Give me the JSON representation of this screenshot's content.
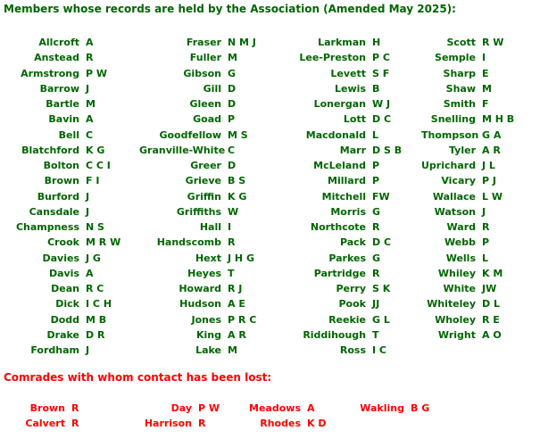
{
  "title": "Members whose records are held by the Association (Amended May 2025):",
  "colors": {
    "members_green": "#006600",
    "lost_red": "#ff0000"
  },
  "members": {
    "columns": [
      [
        {
          "surname": "Allcroft",
          "initials": "A"
        },
        {
          "surname": "Anstead",
          "initials": "R"
        },
        {
          "surname": "Armstrong",
          "initials": "P W"
        },
        {
          "surname": "Barrow",
          "initials": "J"
        },
        {
          "surname": "Bartle",
          "initials": "M"
        },
        {
          "surname": "Bavin",
          "initials": "A"
        },
        {
          "surname": "Bell",
          "initials": "C"
        },
        {
          "surname": "Blatchford",
          "initials": "K G"
        },
        {
          "surname": "Bolton",
          "initials": "C C I"
        },
        {
          "surname": "Brown",
          "initials": "F I"
        },
        {
          "surname": "Burford",
          "initials": "J"
        },
        {
          "surname": "Cansdale",
          "initials": "J"
        },
        {
          "surname": "Champness",
          "initials": "N S"
        },
        {
          "surname": "Crook",
          "initials": "M R W"
        },
        {
          "surname": "Davies",
          "initials": "J G"
        },
        {
          "surname": "Davis",
          "initials": "A"
        },
        {
          "surname": "Dean",
          "initials": "R C"
        },
        {
          "surname": "Dick",
          "initials": "I C H"
        },
        {
          "surname": "Dodd",
          "initials": "M B"
        },
        {
          "surname": "Drake",
          "initials": "D R"
        },
        {
          "surname": "Fordham",
          "initials": "J"
        }
      ],
      [
        {
          "surname": "Fraser",
          "initials": "N M J"
        },
        {
          "surname": "Fuller",
          "initials": "M"
        },
        {
          "surname": "Gibson",
          "initials": "G"
        },
        {
          "surname": "Gill",
          "initials": "D"
        },
        {
          "surname": "Gleen",
          "initials": "D"
        },
        {
          "surname": "Goad",
          "initials": "P"
        },
        {
          "surname": "Goodfellow",
          "initials": "M S"
        },
        {
          "surname": "Granville-White",
          "initials": "C"
        },
        {
          "surname": "Greer",
          "initials": "D"
        },
        {
          "surname": "Grieve",
          "initials": "B S"
        },
        {
          "surname": "Griffin",
          "initials": "K G"
        },
        {
          "surname": "Griffiths",
          "initials": "W"
        },
        {
          "surname": "Hall",
          "initials": "I"
        },
        {
          "surname": "Handscomb",
          "initials": "R"
        },
        {
          "surname": "Hext",
          "initials": "J H G"
        },
        {
          "surname": "Heyes",
          "initials": "T"
        },
        {
          "surname": "Howard",
          "initials": "R J"
        },
        {
          "surname": "Hudson",
          "initials": "A E"
        },
        {
          "surname": "Jones",
          "initials": "P R C"
        },
        {
          "surname": "King",
          "initials": "A R"
        },
        {
          "surname": "Lake",
          "initials": "M"
        }
      ],
      [
        {
          "surname": "Larkman",
          "initials": "H"
        },
        {
          "surname": "Lee-Preston",
          "initials": "P C"
        },
        {
          "surname": "Levett",
          "initials": "S F"
        },
        {
          "surname": "Lewis",
          "initials": "B"
        },
        {
          "surname": "Lonergan",
          "initials": "W J"
        },
        {
          "surname": "Lott",
          "initials": "D C"
        },
        {
          "surname": "Macdonald",
          "initials": "L"
        },
        {
          "surname": "Marr",
          "initials": "D S B"
        },
        {
          "surname": "McLeland",
          "initials": "P"
        },
        {
          "surname": "Millard",
          "initials": "P"
        },
        {
          "surname": "Mitchell",
          "initials": "FW"
        },
        {
          "surname": "Morris",
          "initials": "G"
        },
        {
          "surname": "Northcote",
          "initials": "R"
        },
        {
          "surname": "Pack",
          "initials": "D C"
        },
        {
          "surname": "Parkes",
          "initials": "G"
        },
        {
          "surname": "Partridge",
          "initials": "R"
        },
        {
          "surname": "Perry",
          "initials": "S K"
        },
        {
          "surname": "Pook",
          "initials": "JJ"
        },
        {
          "surname": "Reekie",
          "initials": "G L"
        },
        {
          "surname": "Riddihough",
          "initials": "T"
        },
        {
          "surname": "Ross",
          "initials": "I C"
        }
      ],
      [
        {
          "surname": "Scott",
          "initials": "R W"
        },
        {
          "surname": "Semple",
          "initials": "I"
        },
        {
          "surname": "Sharp",
          "initials": "E"
        },
        {
          "surname": "Shaw",
          "initials": "M"
        },
        {
          "surname": "Smith",
          "initials": "F"
        },
        {
          "surname": "Snelling",
          "initials": "M H B"
        },
        {
          "surname": "Thompson",
          "initials": "G A"
        },
        {
          "surname": "Tyler",
          "initials": "A R"
        },
        {
          "surname": "Uprichard",
          "initials": "J L"
        },
        {
          "surname": "Vicary",
          "initials": "P J"
        },
        {
          "surname": "Wallace",
          "initials": "L W"
        },
        {
          "surname": "Watson",
          "initials": "J"
        },
        {
          "surname": "Ward",
          "initials": "R"
        },
        {
          "surname": "Webb",
          "initials": "P"
        },
        {
          "surname": "Wells",
          "initials": "L"
        },
        {
          "surname": "Whiley",
          "initials": "K M"
        },
        {
          "surname": "White",
          "initials": "JW"
        },
        {
          "surname": "Whiteley",
          "initials": "D L"
        },
        {
          "surname": "Wholey",
          "initials": "R E"
        },
        {
          "surname": "Wright",
          "initials": "A O"
        }
      ]
    ]
  },
  "lost_contact": {
    "title": "Comrades with whom contact has been lost:",
    "columns": [
      [
        {
          "surname": "Brown",
          "initials": "R"
        },
        {
          "surname": "Calvert",
          "initials": "R"
        }
      ],
      [
        {
          "surname": "Day",
          "initials": "P W"
        },
        {
          "surname": "Harrison",
          "initials": "R"
        }
      ],
      [
        {
          "surname": "Meadows",
          "initials": "A"
        },
        {
          "surname": "Rhodes",
          "initials": "K D"
        }
      ],
      [
        {
          "surname": "Wakling",
          "initials": "B G"
        }
      ]
    ]
  }
}
